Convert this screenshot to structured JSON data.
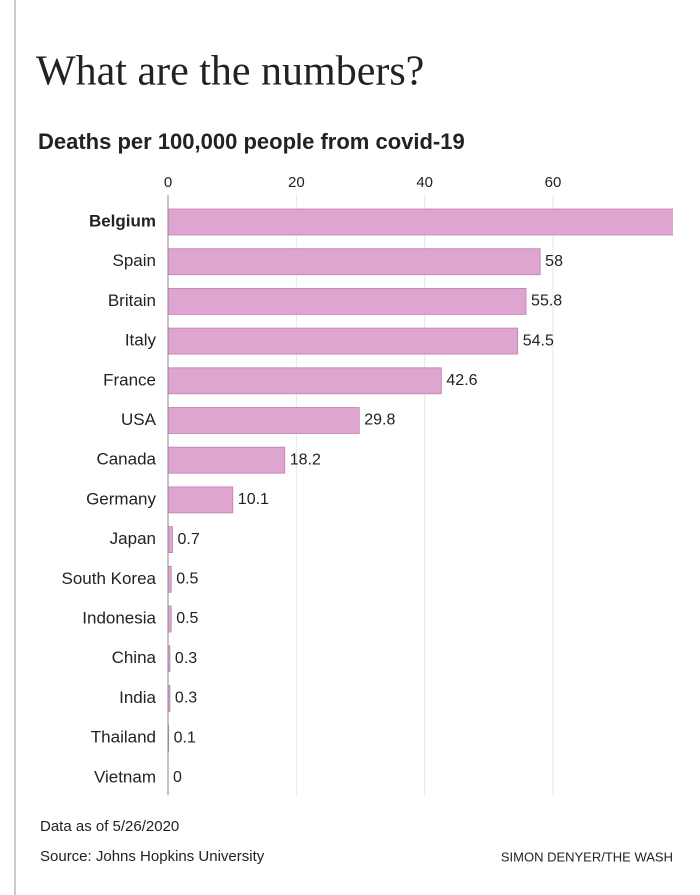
{
  "chart_data": {
    "type": "barh",
    "title": "What are the numbers?",
    "subtitle": "Deaths per 100,000 people from covid-19",
    "categories": [
      "Belgium",
      "Spain",
      "Britain",
      "Italy",
      "France",
      "USA",
      "Canada",
      "Germany",
      "Japan",
      "South Korea",
      "Indonesia",
      "China",
      "India",
      "Thailand",
      "Vietnam"
    ],
    "values": [
      80,
      58,
      55.8,
      54.5,
      42.6,
      29.8,
      18.2,
      10.1,
      0.7,
      0.5,
      0.5,
      0.3,
      0.3,
      0.1,
      0
    ],
    "color": "#dda5d0",
    "xlim": [
      0,
      78.7
    ],
    "xticks": [
      0,
      20,
      40,
      60
    ],
    "grid": true,
    "notes": [
      "Data as of 5/26/2020",
      "Source: Johns Hopkins University"
    ],
    "credit": "SIMON DENYER/THE WASH"
  }
}
